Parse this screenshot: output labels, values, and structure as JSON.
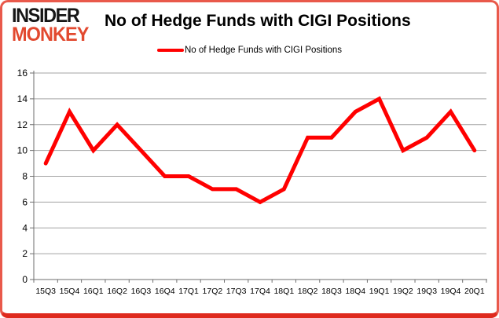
{
  "header": {
    "logo_line1": "INSIDER",
    "logo_line2": "MONKEY",
    "title": "No of Hedge Funds with CIGI Positions"
  },
  "legend": {
    "label": "No of Hedge Funds with CIGI Positions"
  },
  "colors": {
    "line": "#ff0000",
    "border": "#e9594b",
    "border_bottom": "#df2a1e",
    "gridline": "#a3a3a3",
    "axis": "#6e6e6e",
    "text": "#000000",
    "logo_black": "#161616",
    "logo_red": "#e2492f"
  },
  "chart_data": {
    "type": "line",
    "title": "No of Hedge Funds with CIGI Positions",
    "categories": [
      "15Q3",
      "15Q4",
      "16Q1",
      "16Q2",
      "16Q3",
      "16Q4",
      "17Q1",
      "17Q2",
      "17Q3",
      "17Q4",
      "18Q1",
      "18Q2",
      "18Q3",
      "18Q4",
      "19Q1",
      "19Q2",
      "19Q3",
      "19Q4",
      "20Q1"
    ],
    "series": [
      {
        "name": "No of Hedge Funds with CIGI Positions",
        "color": "#ff0000",
        "values": [
          9,
          13,
          10,
          12,
          10,
          8,
          8,
          7,
          7,
          6,
          7,
          11,
          11,
          13,
          14,
          10,
          11,
          13,
          10
        ]
      }
    ],
    "xlabel": "",
    "ylabel": "",
    "ylim": [
      0,
      16
    ],
    "ytick_step": 2,
    "grid": true,
    "legend_position": "top-center"
  }
}
